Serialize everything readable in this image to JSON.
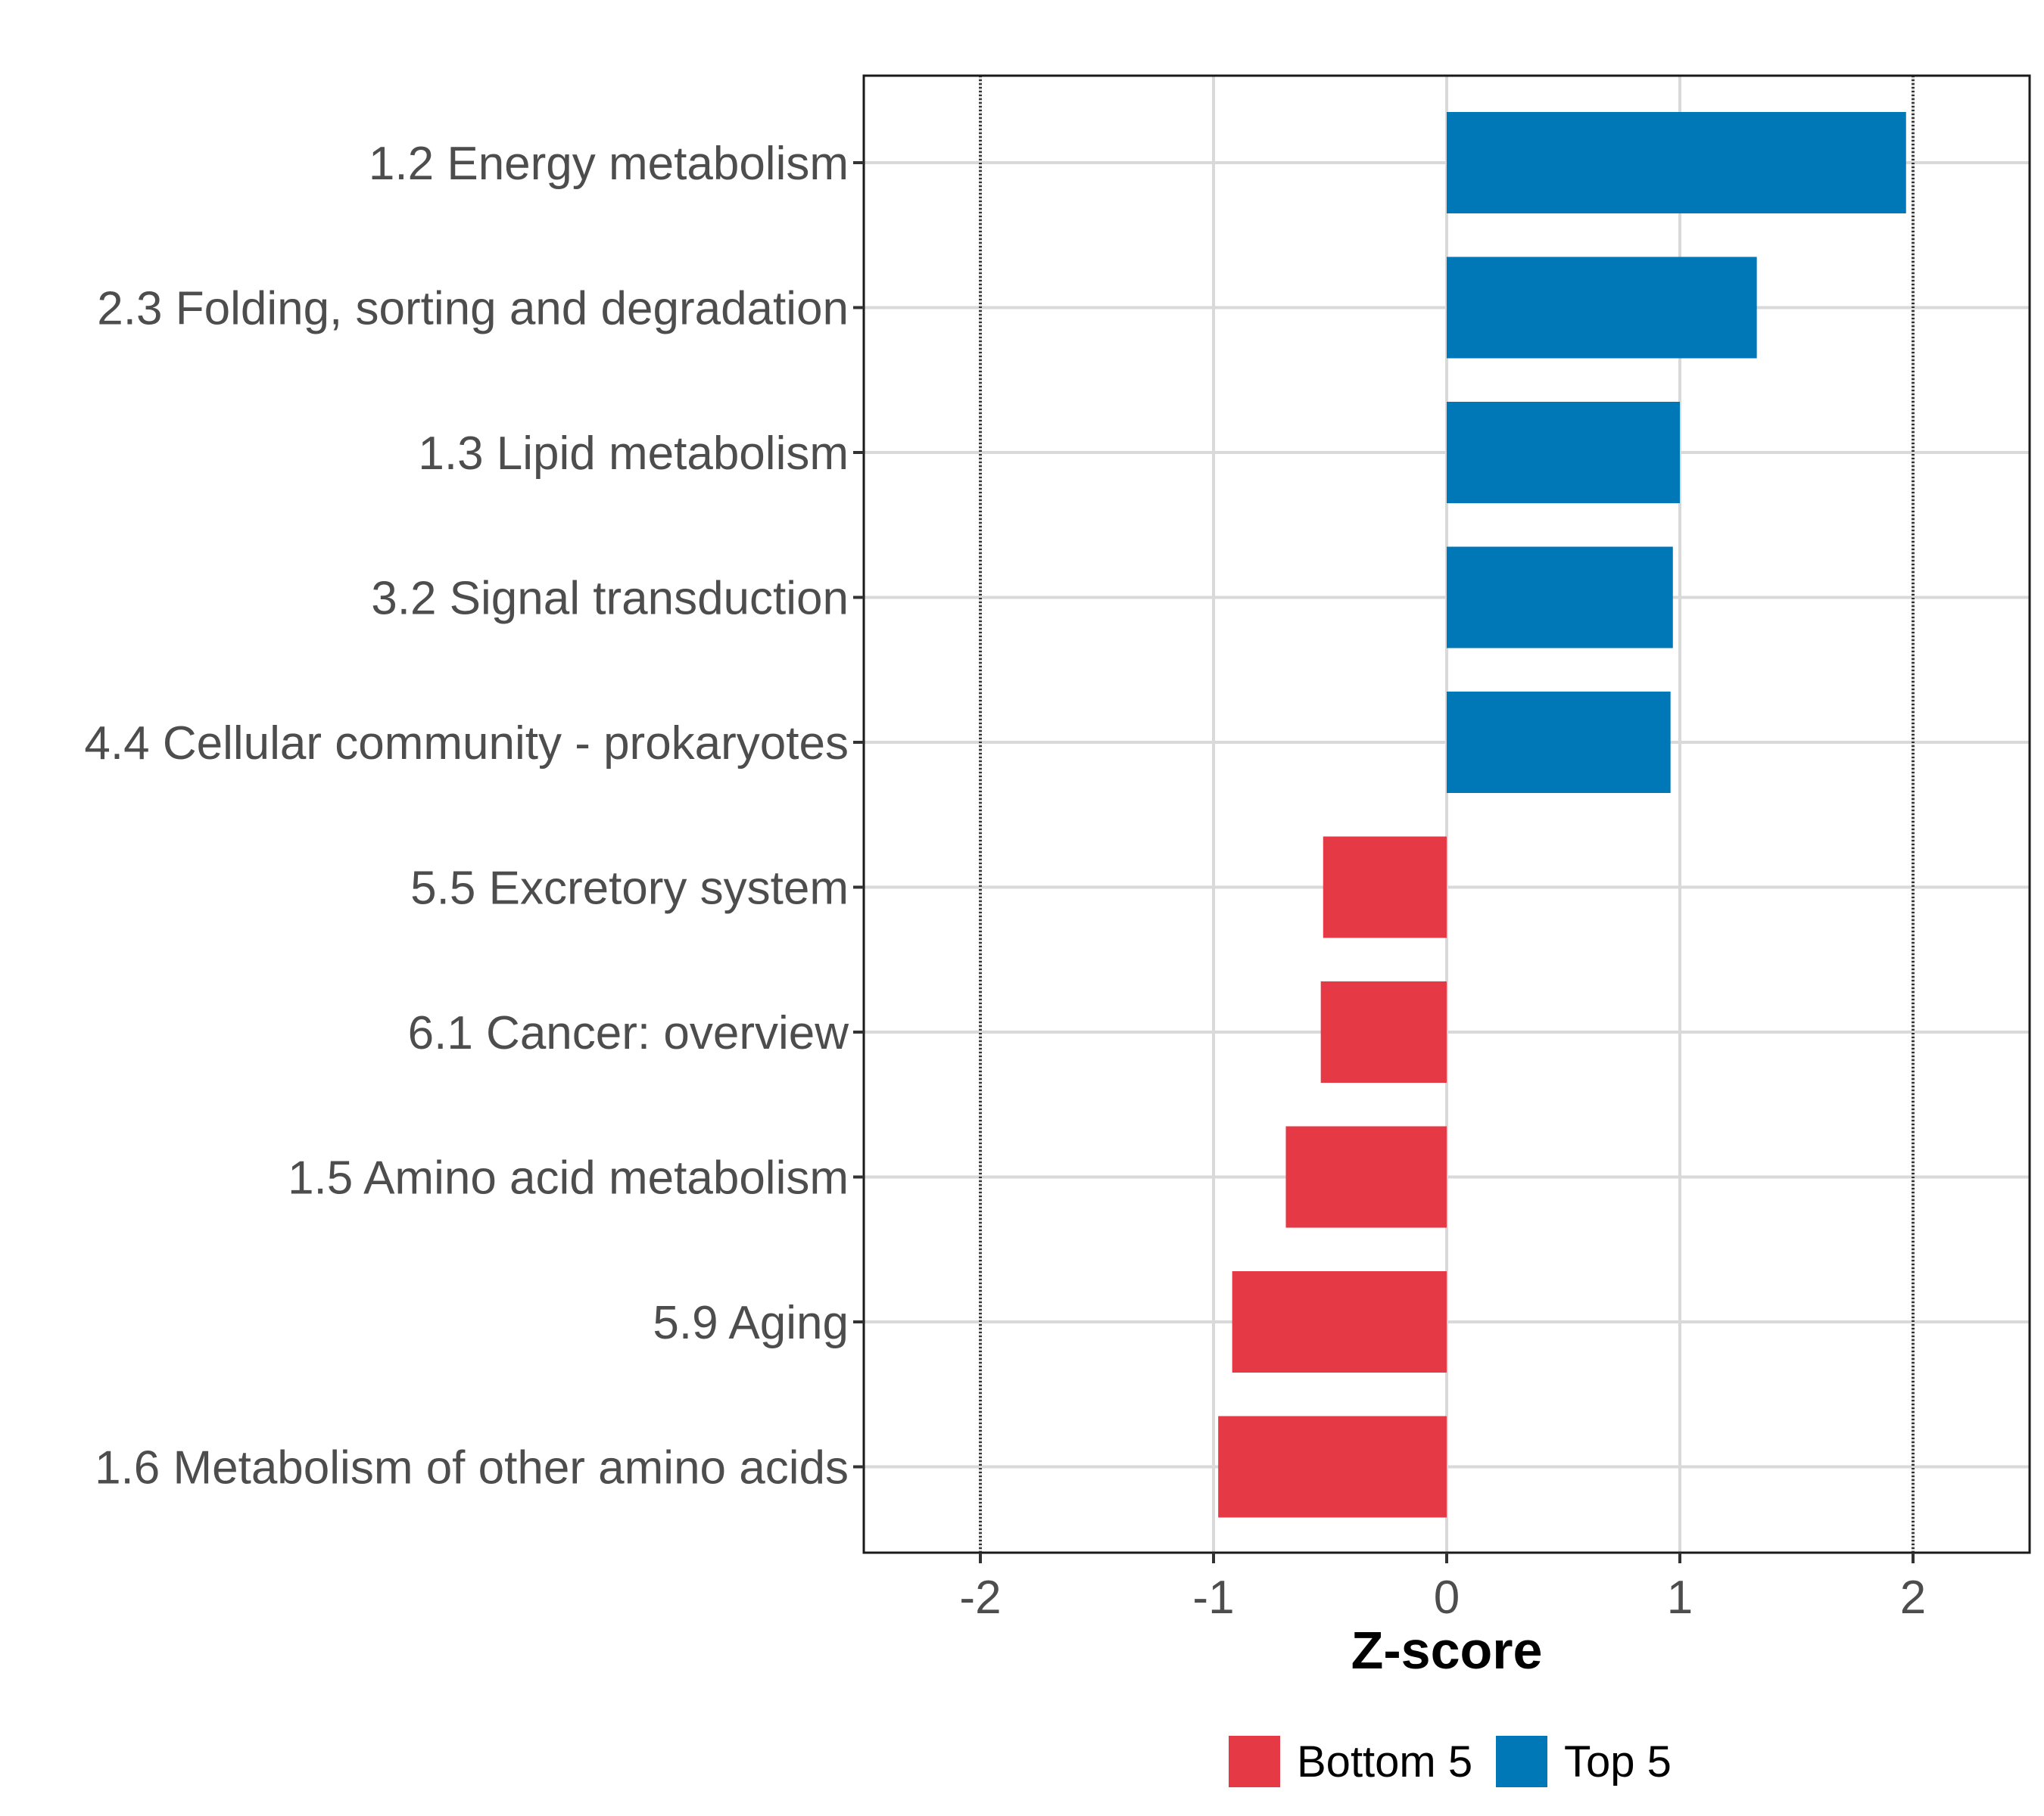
{
  "chart_data": {
    "type": "bar",
    "orientation": "horizontal",
    "categories": [
      "1.2 Energy metabolism",
      "2.3 Folding, sorting and degradation",
      "1.3 Lipid metabolism",
      "3.2 Signal transduction",
      "4.4 Cellular community - prokaryotes",
      "5.5 Excretory system",
      "6.1 Cancer: overview",
      "1.5 Amino acid metabolism",
      "5.9 Aging",
      "1.6 Metabolism of other amino acids"
    ],
    "values": [
      1.97,
      1.33,
      1.0,
      0.97,
      0.96,
      -0.53,
      -0.54,
      -0.69,
      -0.92,
      -0.98
    ],
    "groups": [
      "Top 5",
      "Top 5",
      "Top 5",
      "Top 5",
      "Top 5",
      "Bottom 5",
      "Bottom 5",
      "Bottom 5",
      "Bottom 5",
      "Bottom 5"
    ],
    "xlabel": "Z-score",
    "ylabel": "",
    "xlim": [
      -2.5,
      2.5
    ],
    "xticks": [
      -2,
      -1,
      0,
      1,
      2
    ],
    "xtick_labels": [
      "-2",
      "-1",
      "0",
      "1",
      "2"
    ],
    "reference_lines": [
      -2,
      2
    ],
    "legend": {
      "position": "bottom",
      "entries": [
        {
          "label": "Bottom 5",
          "color": "#e63946"
        },
        {
          "label": "Top 5",
          "color": "#0077b6"
        }
      ]
    },
    "colors": {
      "Top 5": "#0077b6",
      "Bottom 5": "#e63946"
    },
    "grid": true
  }
}
